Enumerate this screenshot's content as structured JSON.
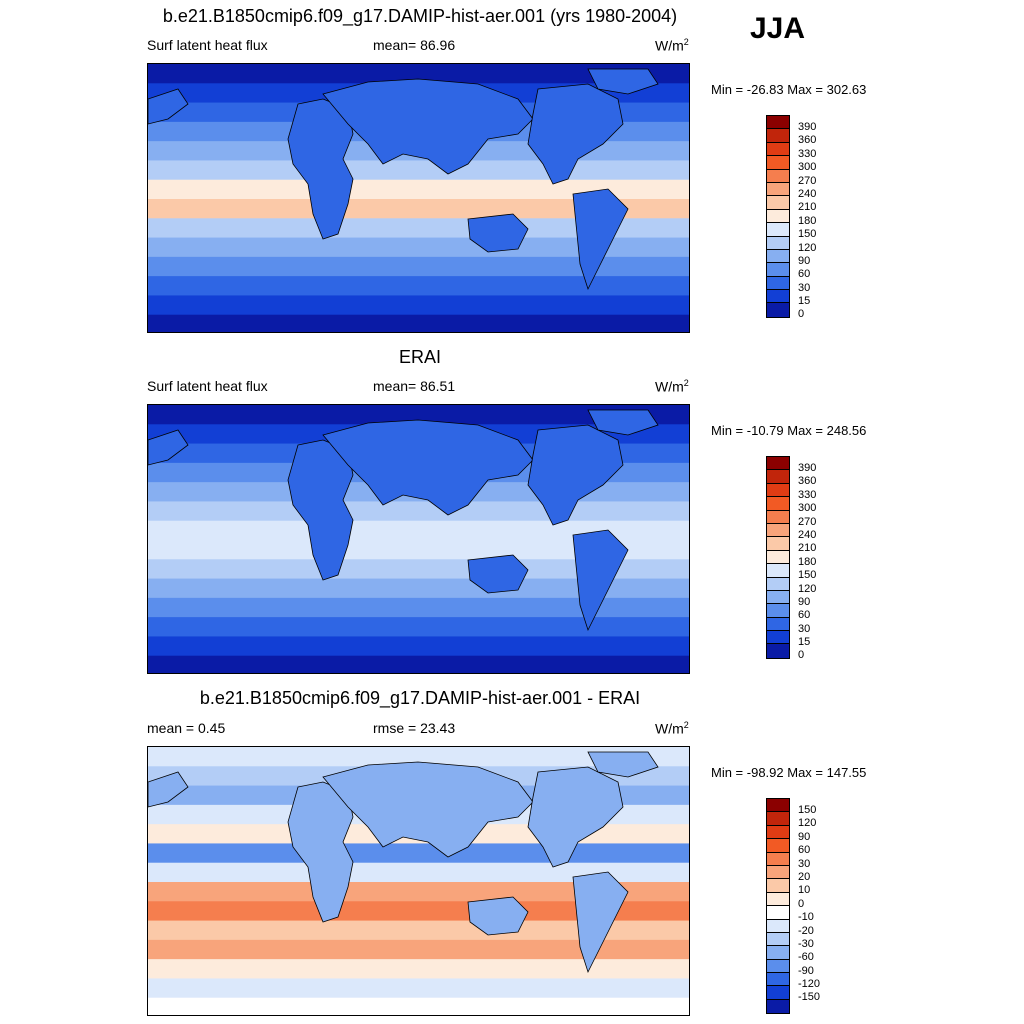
{
  "season": "JJA",
  "panels": [
    {
      "title": "b.e21.B1850cmip6.f09_g17.DAMIP-hist-aer.001 (yrs 1980-2004)",
      "left_label": "Surf latent heat flux",
      "center_label": "mean=  86.96",
      "units": "W/m",
      "units_sup": "2",
      "minmax": "Min = -26.83 Max = 302.63",
      "colorbar_labels": [
        "390",
        "360",
        "330",
        "300",
        "270",
        "240",
        "210",
        "180",
        "150",
        "120",
        "90",
        "60",
        "30",
        "15",
        "0"
      ],
      "colorbar_colors": [
        "#8b0000",
        "#c1250b",
        "#e03c14",
        "#f25a24",
        "#f57e4e",
        "#f8a47b",
        "#fbc9a8",
        "#fdebdc",
        "#dbe8fb",
        "#b3cdf6",
        "#87aff1",
        "#5b8eec",
        "#2f66e4",
        "#123fd5",
        "#0a1ba6"
      ],
      "map_style": "model"
    },
    {
      "title": "ERAI",
      "left_label": "Surf latent heat flux",
      "center_label": "mean=  86.51",
      "units": "W/m",
      "units_sup": "2",
      "minmax": "Min = -10.79 Max = 248.56",
      "colorbar_labels": [
        "390",
        "360",
        "330",
        "300",
        "270",
        "240",
        "210",
        "180",
        "150",
        "120",
        "90",
        "60",
        "30",
        "15",
        "0"
      ],
      "colorbar_colors": [
        "#8b0000",
        "#c1250b",
        "#e03c14",
        "#f25a24",
        "#f57e4e",
        "#f8a47b",
        "#fbc9a8",
        "#fdebdc",
        "#dbe8fb",
        "#b3cdf6",
        "#87aff1",
        "#5b8eec",
        "#2f66e4",
        "#123fd5",
        "#0a1ba6"
      ],
      "map_style": "obs"
    },
    {
      "title": "b.e21.B1850cmip6.f09_g17.DAMIP-hist-aer.001 - ERAI",
      "left_label": "mean =   0.45",
      "center_label": "rmse =  23.43",
      "units": "W/m",
      "units_sup": "2",
      "minmax": "Min = -98.92 Max = 147.55",
      "colorbar_labels": [
        "150",
        "120",
        "90",
        "60",
        "30",
        "20",
        "10",
        "0",
        "-10",
        "-20",
        "-30",
        "-60",
        "-90",
        "-120",
        "-150"
      ],
      "colorbar_colors": [
        "#8b0000",
        "#c1250b",
        "#e03c14",
        "#f25a24",
        "#f57e4e",
        "#f8a47b",
        "#fbc9a8",
        "#fdebdc",
        "#ffffff",
        "#dbe8fb",
        "#b3cdf6",
        "#87aff1",
        "#5b8eec",
        "#2f66e4",
        "#123fd5",
        "#0a1ba6"
      ],
      "map_style": "diff"
    }
  ]
}
